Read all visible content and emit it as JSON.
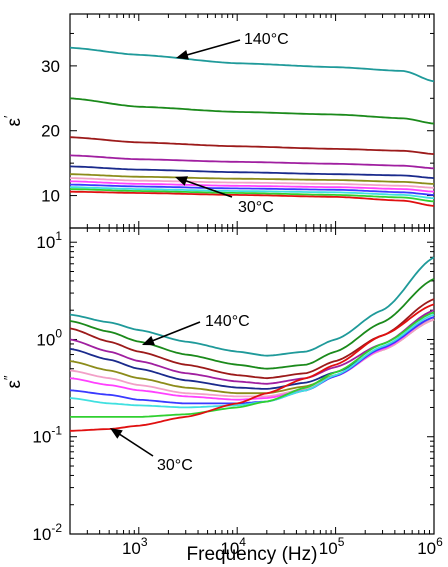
{
  "chart_data": [
    {
      "type": "line",
      "panel": "top",
      "ylabel": "ε′",
      "ylabel_base": "ε",
      "ylabel_mark": "′",
      "xlabel": "",
      "xscale": "log",
      "xlim": [
        200,
        1000000
      ],
      "ylim": [
        5,
        38
      ],
      "yticks": [
        10,
        20,
        30
      ],
      "ytick_labels": [
        "10",
        "20",
        "30"
      ],
      "x": [
        200,
        1000,
        10000,
        100000,
        500000,
        1000000
      ],
      "series": [
        {
          "color": "#1f9a9a",
          "values": [
            32.8,
            31.7,
            30.4,
            29.8,
            29.2,
            27.6
          ]
        },
        {
          "color": "#1b8a1b",
          "values": [
            25.0,
            23.7,
            22.9,
            22.5,
            21.9,
            21.1
          ]
        },
        {
          "color": "#9c1a1a",
          "values": [
            19.0,
            18.2,
            17.6,
            17.2,
            16.9,
            16.4
          ]
        },
        {
          "color": "#a01fa0",
          "values": [
            16.2,
            15.6,
            15.2,
            14.9,
            14.6,
            14.2
          ]
        },
        {
          "color": "#1a2a8c",
          "values": [
            14.5,
            14.0,
            13.6,
            13.3,
            13.1,
            12.7
          ]
        },
        {
          "color": "#8c8c1a",
          "values": [
            13.3,
            12.9,
            12.6,
            12.4,
            12.1,
            11.8
          ]
        },
        {
          "color": "#f2a0c8",
          "values": [
            12.7,
            12.3,
            12.0,
            11.8,
            11.5,
            11.2
          ]
        },
        {
          "color": "#ff40ff",
          "values": [
            12.2,
            11.8,
            11.5,
            11.3,
            11.0,
            10.6
          ]
        },
        {
          "color": "#3a3aff",
          "values": [
            11.7,
            11.4,
            11.1,
            10.9,
            10.5,
            10.1
          ]
        },
        {
          "color": "#40e0e0",
          "values": [
            11.3,
            11.0,
            10.7,
            10.5,
            10.1,
            9.6
          ]
        },
        {
          "color": "#30d030",
          "values": [
            11.0,
            10.7,
            10.4,
            10.1,
            9.7,
            9.1
          ]
        },
        {
          "color": "#e01010",
          "values": [
            10.6,
            10.4,
            10.1,
            9.8,
            9.2,
            8.4
          ]
        }
      ],
      "annotations": [
        {
          "text": "140°C",
          "x": 10000,
          "y": 33.5
        },
        {
          "text": "30°C",
          "x": 25000,
          "y": 8.0
        }
      ]
    },
    {
      "type": "line",
      "panel": "bottom",
      "ylabel": "ε″",
      "ylabel_base": "ε",
      "ylabel_mark": "″",
      "xlabel": "Frequency (Hz)",
      "xscale": "log",
      "yscale": "log",
      "xlim": [
        200,
        1000000
      ],
      "ylim": [
        0.01,
        14
      ],
      "xticks": [
        1000,
        10000,
        100000,
        1000000
      ],
      "xtick_labels": [
        {
          "base": "10",
          "exp": "3"
        },
        {
          "base": "10",
          "exp": "4"
        },
        {
          "base": "10",
          "exp": "5"
        },
        {
          "base": "10",
          "exp": "6"
        }
      ],
      "yticks": [
        0.01,
        0.1,
        1,
        10
      ],
      "ytick_labels": [
        {
          "base": "10",
          "exp": "-2"
        },
        {
          "base": "10",
          "exp": "-1"
        },
        {
          "base": "10",
          "exp": "0"
        },
        {
          "base": "10",
          "exp": "1"
        }
      ],
      "x": [
        200,
        500,
        1000,
        3000,
        10000,
        20000,
        50000,
        100000,
        300000,
        1000000
      ],
      "series": [
        {
          "color": "#1f9a9a",
          "values": [
            1.8,
            1.5,
            1.25,
            0.95,
            0.75,
            0.68,
            0.75,
            1.0,
            2.0,
            7.0
          ]
        },
        {
          "color": "#1b8a1b",
          "values": [
            1.55,
            1.2,
            0.95,
            0.7,
            0.55,
            0.5,
            0.55,
            0.75,
            1.5,
            4.2
          ]
        },
        {
          "color": "#9c1a1a",
          "values": [
            1.3,
            0.95,
            0.75,
            0.55,
            0.43,
            0.4,
            0.45,
            0.6,
            1.1,
            2.6
          ]
        },
        {
          "color": "#a01fa0",
          "values": [
            1.0,
            0.75,
            0.6,
            0.45,
            0.37,
            0.35,
            0.4,
            0.52,
            0.9,
            2.0
          ]
        },
        {
          "color": "#1a2a8c",
          "values": [
            0.8,
            0.62,
            0.5,
            0.38,
            0.32,
            0.31,
            0.36,
            0.46,
            0.8,
            1.7
          ]
        },
        {
          "color": "#8c8c1a",
          "values": [
            0.6,
            0.48,
            0.4,
            0.32,
            0.28,
            0.28,
            0.33,
            0.43,
            0.78,
            1.6
          ]
        },
        {
          "color": "#f2a0c8",
          "values": [
            0.48,
            0.4,
            0.34,
            0.28,
            0.26,
            0.26,
            0.31,
            0.42,
            0.78,
            1.6
          ]
        },
        {
          "color": "#ff40ff",
          "values": [
            0.4,
            0.34,
            0.3,
            0.26,
            0.24,
            0.25,
            0.3,
            0.42,
            0.8,
            1.7
          ]
        },
        {
          "color": "#3a3aff",
          "values": [
            0.3,
            0.27,
            0.24,
            0.22,
            0.22,
            0.23,
            0.3,
            0.42,
            0.82,
            1.7
          ]
        },
        {
          "color": "#40e0e0",
          "values": [
            0.25,
            0.22,
            0.21,
            0.2,
            0.21,
            0.23,
            0.3,
            0.43,
            0.85,
            1.8
          ]
        },
        {
          "color": "#30d030",
          "values": [
            0.16,
            0.16,
            0.16,
            0.17,
            0.2,
            0.23,
            0.32,
            0.46,
            0.9,
            1.9
          ]
        },
        {
          "color": "#e01010",
          "values": [
            0.115,
            0.12,
            0.13,
            0.16,
            0.22,
            0.28,
            0.4,
            0.55,
            1.1,
            2.3
          ]
        }
      ],
      "annotations": [
        {
          "text": "140°C",
          "x": 8000,
          "y": 1.7
        },
        {
          "text": "30°C",
          "x": 4000,
          "y": 0.048
        }
      ]
    }
  ]
}
